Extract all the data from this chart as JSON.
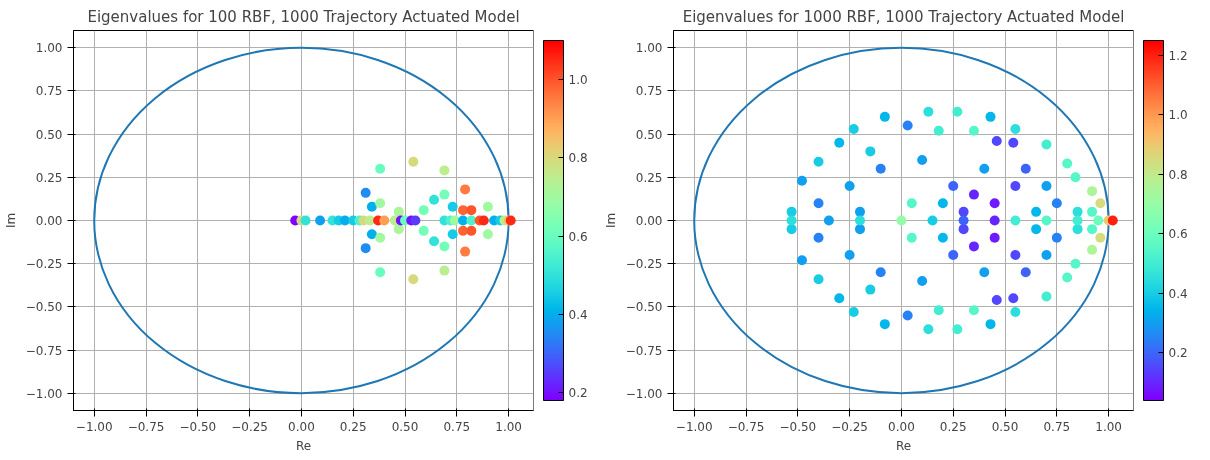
{
  "chart_data": [
    {
      "type": "scatter",
      "title": "Eigenvalues for 100 RBF, 1000 Trajectory Actuated Model",
      "xlabel": "Re",
      "ylabel": "Im",
      "grid": true,
      "marker": "circle",
      "xlim": [
        -1.1,
        1.12
      ],
      "ylim": [
        -1.1,
        1.1
      ],
      "xticks": [
        {
          "value": -1,
          "label": "−1.00"
        },
        {
          "value": -0.75,
          "label": "−0.75"
        },
        {
          "value": -0.5,
          "label": "−0.50"
        },
        {
          "value": -0.25,
          "label": "−0.25"
        },
        {
          "value": 0,
          "label": "0.00"
        },
        {
          "value": 0.25,
          "label": "0.25"
        },
        {
          "value": 0.5,
          "label": "0.50"
        },
        {
          "value": 0.75,
          "label": "0.75"
        },
        {
          "value": 1,
          "label": "1.00"
        }
      ],
      "yticks": [
        {
          "value": -1,
          "label": "−1.00"
        },
        {
          "value": -0.75,
          "label": "−0.75"
        },
        {
          "value": -0.5,
          "label": "−0.50"
        },
        {
          "value": -0.25,
          "label": "−0.25"
        },
        {
          "value": 0,
          "label": "0.00"
        },
        {
          "value": 0.25,
          "label": "0.25"
        },
        {
          "value": 0.5,
          "label": "0.50"
        },
        {
          "value": 0.75,
          "label": "0.75"
        },
        {
          "value": 1,
          "label": "1.00"
        }
      ],
      "clim": [
        0.18,
        1.1
      ],
      "cticks": [
        {
          "value": 0.2,
          "label": "0.2"
        },
        {
          "value": 0.4,
          "label": "0.4"
        },
        {
          "value": 0.6,
          "label": "0.6"
        },
        {
          "value": 0.8,
          "label": "0.8"
        },
        {
          "value": 1,
          "label": "1.0"
        }
      ],
      "series": [
        {
          "type": "scatter",
          "x": [
            0.38,
            0.38,
            0.54,
            0.54,
            0.69,
            0.69,
            0.31,
            0.31,
            0.34,
            0.34,
            0.38,
            0.38,
            0.47,
            0.47,
            0.59,
            0.59,
            0.64,
            0.64,
            0.69,
            0.69,
            0.73,
            0.73,
            0.79,
            0.79,
            0.78,
            0.78,
            0.82,
            0.82,
            0.9,
            0.9,
            -0.03,
            0,
            0.02,
            0.09,
            0.15,
            0.18,
            0.21,
            0.25,
            0.28,
            0.3,
            0.33,
            0.37,
            0.4,
            0.45,
            0.48,
            0.5,
            0.53,
            0.55,
            0.69,
            0.72,
            0.74,
            0.78,
            0.82,
            0.86,
            0.88,
            0.93,
            0.96,
            0.98,
            1,
            1.01
          ],
          "values": [
            0.3,
            -0.3,
            0.34,
            -0.34,
            0.29,
            -0.29,
            0.16,
            -0.16,
            0.08,
            -0.08,
            0.1,
            -0.1,
            0.05,
            -0.05,
            0.06,
            -0.06,
            0.12,
            -0.12,
            0.15,
            -0.15,
            0.08,
            -0.08,
            0.18,
            -0.18,
            0.06,
            -0.06,
            0.06,
            -0.06,
            0.08,
            -0.08,
            0,
            0,
            0,
            0,
            0,
            0,
            0,
            0,
            0,
            0,
            0,
            0,
            0,
            0,
            0,
            0,
            0,
            0,
            0,
            0,
            0,
            0,
            0,
            0,
            0,
            0,
            0,
            0,
            0,
            0
          ],
          "cvalues": [
            0.6,
            0.6,
            0.8,
            0.8,
            0.75,
            0.75,
            0.35,
            0.35,
            0.4,
            0.4,
            0.7,
            0.7,
            0.72,
            0.72,
            0.62,
            0.62,
            0.5,
            0.5,
            0.62,
            0.62,
            0.45,
            0.45,
            0.95,
            0.95,
            0.98,
            0.98,
            1,
            1,
            0.7,
            0.7,
            0.18,
            0.8,
            0.5,
            0.38,
            0.5,
            0.45,
            0.4,
            0.45,
            0.55,
            0.8,
            0.75,
            1.05,
            0.9,
            0.75,
            0.2,
            0.6,
            0.2,
            0.25,
            0.5,
            0.55,
            0.7,
            0.4,
            0.55,
            1,
            1.05,
            0.4,
            0.45,
            0.75,
            0.85,
            1.05
          ]
        }
      ]
    },
    {
      "type": "scatter",
      "title": "Eigenvalues for 1000 RBF, 1000 Trajectory Actuated Model",
      "xlabel": "Re",
      "ylabel": "Im",
      "grid": true,
      "marker": "circle",
      "xlim": [
        -1.1,
        1.12
      ],
      "ylim": [
        -1.1,
        1.1
      ],
      "xticks": [
        {
          "value": -1,
          "label": "−1.00"
        },
        {
          "value": -0.75,
          "label": "−0.75"
        },
        {
          "value": -0.5,
          "label": "−0.50"
        },
        {
          "value": -0.25,
          "label": "−0.25"
        },
        {
          "value": 0,
          "label": "0.00"
        },
        {
          "value": 0.25,
          "label": "0.25"
        },
        {
          "value": 0.5,
          "label": "0.50"
        },
        {
          "value": 0.75,
          "label": "0.75"
        },
        {
          "value": 1,
          "label": "1.00"
        }
      ],
      "yticks": [
        {
          "value": -1,
          "label": "−1.00"
        },
        {
          "value": -0.75,
          "label": "−0.75"
        },
        {
          "value": -0.5,
          "label": "−0.50"
        },
        {
          "value": -0.25,
          "label": "−0.25"
        },
        {
          "value": 0,
          "label": "0.00"
        },
        {
          "value": 0.25,
          "label": "0.25"
        },
        {
          "value": 0.5,
          "label": "0.50"
        },
        {
          "value": 0.75,
          "label": "0.75"
        },
        {
          "value": 1,
          "label": "1.00"
        }
      ],
      "clim": [
        0.04,
        1.25
      ],
      "cticks": [
        {
          "value": 0.2,
          "label": "0.2"
        },
        {
          "value": 0.4,
          "label": "0.4"
        },
        {
          "value": 0.6,
          "label": "0.6"
        },
        {
          "value": 0.8,
          "label": "0.8"
        },
        {
          "value": 1,
          "label": "1.0"
        },
        {
          "value": 1.2,
          "label": "1.2"
        }
      ],
      "series": [
        {
          "type": "scatter",
          "x": [
            0.13,
            0.27,
            -0.08,
            0.43,
            0.55,
            0.7,
            0.8,
            0.84,
            0.92,
            0.96,
            -0.23,
            -0.4,
            -0.48,
            -0.53,
            -0.3,
            0.03,
            0.46,
            0.54,
            0.18,
            0.35,
            -0.15,
            0.1,
            0.6,
            -0.1,
            -0.25,
            -0.4,
            0.05,
            0.25,
            0.35,
            0.45,
            0.55,
            0.7,
            0.75,
            0.4,
            0.2,
            0.3,
            -0.2,
            0.65,
            0.85,
            0.92,
            0.13,
            0.27,
            -0.08,
            0.43,
            0.55,
            0.7,
            0.8,
            0.84,
            0.92,
            0.96,
            -0.23,
            -0.4,
            -0.48,
            -0.53,
            -0.3,
            0.03,
            0.46,
            0.54,
            0.18,
            0.35,
            -0.15,
            0.1,
            0.6,
            -0.1,
            -0.25,
            -0.4,
            0.05,
            0.25,
            0.35,
            0.45,
            0.55,
            0.7,
            0.75,
            0.4,
            0.2,
            0.3,
            -0.2,
            0.65,
            0.85,
            0.92,
            -0.53,
            -0.35,
            -0.2,
            0,
            0.15,
            0.3,
            0.45,
            0.55,
            0.7,
            0.85,
            0.95,
            1,
            1.02
          ],
          "values": [
            0.63,
            0.63,
            0.6,
            0.6,
            0.53,
            0.44,
            0.33,
            0.25,
            0.17,
            0.1,
            0.53,
            0.34,
            0.23,
            0.05,
            0.45,
            0.55,
            0.46,
            0.45,
            0.52,
            0.52,
            0.4,
            0.35,
            0.3,
            0.3,
            0.2,
            0.1,
            0.1,
            0.2,
            0.15,
            0.1,
            0.2,
            0.2,
            0.1,
            0.3,
            0.1,
            0.05,
            0.05,
            0.05,
            0.05,
            0.05,
            -0.63,
            -0.63,
            -0.6,
            -0.6,
            -0.53,
            -0.44,
            -0.33,
            -0.25,
            -0.17,
            -0.1,
            -0.53,
            -0.34,
            -0.23,
            -0.05,
            -0.45,
            -0.55,
            -0.46,
            -0.45,
            -0.52,
            -0.52,
            -0.4,
            -0.35,
            -0.3,
            -0.3,
            -0.2,
            -0.1,
            -0.1,
            -0.2,
            -0.15,
            -0.1,
            -0.2,
            -0.2,
            -0.1,
            -0.3,
            -0.1,
            -0.05,
            -0.05,
            -0.05,
            -0.05,
            -0.05,
            0,
            0,
            0,
            0,
            0,
            0,
            0,
            0,
            0,
            0,
            0,
            0,
            0
          ],
          "cvalues": [
            0.45,
            0.5,
            0.35,
            0.35,
            0.45,
            0.5,
            0.55,
            0.55,
            0.75,
            0.85,
            0.4,
            0.4,
            0.3,
            0.4,
            0.35,
            0.25,
            0.15,
            0.15,
            0.5,
            0.55,
            0.4,
            0.3,
            0.2,
            0.25,
            0.3,
            0.25,
            0.55,
            0.2,
            0.1,
            0.08,
            0.15,
            0.3,
            0.25,
            0.3,
            0.35,
            0.15,
            0.3,
            0.35,
            0.45,
            0.55,
            0.45,
            0.5,
            0.35,
            0.35,
            0.45,
            0.5,
            0.55,
            0.55,
            0.75,
            0.85,
            0.4,
            0.4,
            0.3,
            0.4,
            0.35,
            0.25,
            0.15,
            0.15,
            0.5,
            0.55,
            0.4,
            0.3,
            0.2,
            0.25,
            0.3,
            0.25,
            0.55,
            0.2,
            0.1,
            0.08,
            0.15,
            0.3,
            0.25,
            0.3,
            0.35,
            0.15,
            0.3,
            0.35,
            0.45,
            0.55,
            0.45,
            0.3,
            0.45,
            0.7,
            0.4,
            0.2,
            0.1,
            0.5,
            0.55,
            0.5,
            0.6,
            0.9,
            1.2
          ]
        }
      ]
    }
  ]
}
